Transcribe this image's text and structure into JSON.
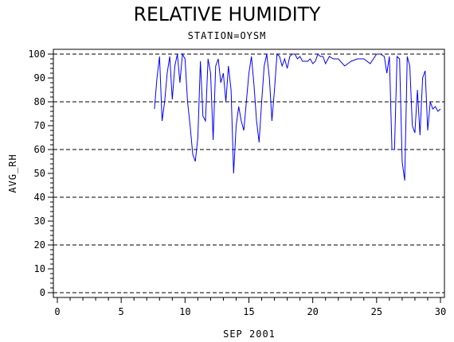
{
  "chart_data": {
    "type": "line",
    "title": "RELATIVE HUMIDITY",
    "subtitle": "STATION=OYSM",
    "xlabel": "SEP 2001",
    "ylabel": "AVG_RH",
    "xlim": [
      0,
      30
    ],
    "ylim": [
      0,
      100
    ],
    "x_ticks": [
      0,
      5,
      10,
      15,
      20,
      25,
      30
    ],
    "y_ticks": [
      0,
      10,
      20,
      30,
      40,
      50,
      60,
      70,
      80,
      90,
      100
    ],
    "reference_lines": [
      0,
      20,
      40,
      60,
      80,
      100
    ],
    "grid": false,
    "series": [
      {
        "color": "#0000ff",
        "x": [
          7.6,
          7.8,
          8.0,
          8.2,
          8.4,
          8.6,
          8.8,
          9.0,
          9.2,
          9.4,
          9.6,
          9.8,
          10.0,
          10.2,
          10.4,
          10.6,
          10.8,
          11.0,
          11.2,
          11.4,
          11.6,
          11.8,
          12.0,
          12.2,
          12.4,
          12.6,
          12.8,
          13.0,
          13.2,
          13.4,
          13.6,
          13.8,
          14.0,
          14.2,
          14.4,
          14.6,
          14.8,
          15.0,
          15.2,
          15.4,
          15.6,
          15.8,
          16.0,
          16.2,
          16.4,
          16.6,
          16.8,
          17.0,
          17.2,
          17.4,
          17.6,
          17.8,
          18.0,
          18.2,
          18.4,
          18.6,
          18.8,
          19.0,
          19.2,
          19.4,
          19.6,
          19.8,
          20.0,
          20.2,
          20.4,
          20.6,
          20.8,
          21.0,
          21.3,
          21.6,
          22.0,
          22.5,
          23.0,
          23.5,
          24.0,
          24.5,
          25.0,
          25.3,
          25.6,
          25.8,
          26.0,
          26.2,
          26.4,
          26.6,
          26.8,
          27.0,
          27.2,
          27.4,
          27.6,
          27.8,
          28.0,
          28.2,
          28.4,
          28.6,
          28.8,
          29.0,
          29.2,
          29.4,
          29.6,
          29.8,
          30.0
        ],
        "values": [
          77,
          90,
          99,
          72,
          80,
          92,
          99,
          81,
          95,
          100,
          88,
          100,
          98,
          80,
          70,
          58,
          55,
          65,
          97,
          74,
          72,
          98,
          92,
          64,
          95,
          98,
          88,
          92,
          80,
          95,
          85,
          50,
          70,
          78,
          72,
          68,
          80,
          92,
          99,
          87,
          72,
          63,
          80,
          95,
          100,
          90,
          72,
          85,
          100,
          99,
          95,
          98,
          94,
          99,
          100,
          100,
          98,
          99,
          97,
          97,
          97,
          98,
          96,
          97,
          100,
          99,
          99,
          96,
          99,
          98,
          98,
          95,
          97,
          98,
          98,
          96,
          100,
          100,
          99,
          92,
          99,
          60,
          60,
          99,
          98,
          55,
          47,
          99,
          95,
          70,
          67,
          85,
          66,
          90,
          93,
          68,
          80,
          77,
          78,
          76,
          77
        ]
      }
    ]
  }
}
